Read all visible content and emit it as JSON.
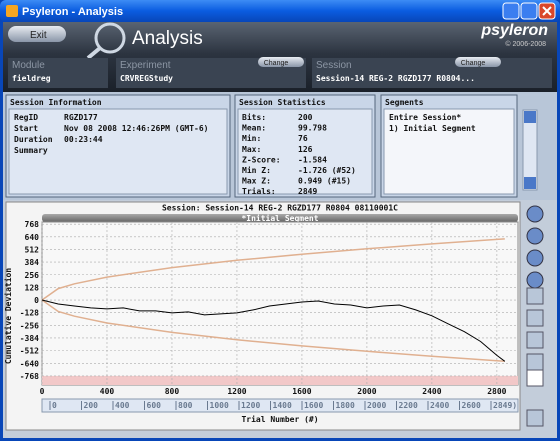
{
  "window": {
    "title": "Psyleron - Analysis"
  },
  "header": {
    "exit": "Exit",
    "title": "Analysis",
    "logo": "psyleron",
    "copyright": "© 2006-2008",
    "module_label": "Module",
    "module": "fieldreg",
    "experiment_label": "Experiment",
    "experiment": "CRVREGStudy",
    "change": "Change",
    "session_label": "Session",
    "session": "Session-14 REG-2 RGZD177 R0804..."
  },
  "session_info": {
    "title": "Session Information",
    "rows": [
      [
        "RegID",
        "RGZD177"
      ],
      [
        "Start",
        "Nov 08 2008 12:46:26PM (GMT-6)"
      ],
      [
        "Duration",
        "00:23:44"
      ],
      [
        "Summary"
      ]
    ]
  },
  "session_stats": {
    "title": "Session Statistics",
    "rows": [
      [
        "Bits:",
        "200"
      ],
      [
        "Mean:",
        "99.798"
      ],
      [
        "Min:",
        "76"
      ],
      [
        "Max:",
        "126"
      ],
      [
        "Z-Score:",
        "-1.584"
      ],
      [
        "Min Z:",
        "-1.726 (#52)"
      ],
      [
        "Max Z:",
        "0.949 (#15)"
      ],
      [
        "Trials:",
        "2849"
      ]
    ]
  },
  "segments": {
    "title": "Segments",
    "items": [
      "Entire Session*",
      "1) Initial Segment"
    ]
  },
  "chart_data": {
    "type": "line",
    "title": "Session: Session-14 REG-2 RGZD177 R0804 08110001C",
    "segment": "*Initial Segment",
    "xlabel": "Trial Number (#)",
    "ylabel": "Cumulative Deviation",
    "xlim": [
      0,
      2930
    ],
    "ylim": [
      -860,
      790
    ],
    "xticks": [
      0,
      400,
      800,
      1200,
      1600,
      2000,
      2400,
      2800
    ],
    "yticks": [
      768,
      640,
      512,
      384,
      256,
      128,
      0,
      -128,
      -256,
      -384,
      -512,
      -640,
      -768
    ],
    "grid": true,
    "series": [
      {
        "color": "#000000",
        "x": [
          0,
          100,
          200,
          300,
          400,
          500,
          600,
          700,
          800,
          900,
          1000,
          1100,
          1200,
          1300,
          1400,
          1500,
          1600,
          1700,
          1800,
          1900,
          2000,
          2100,
          2200,
          2300,
          2400,
          2500,
          2600,
          2700,
          2800,
          2849
        ],
        "values": [
          0,
          -40,
          -60,
          -80,
          -90,
          -80,
          -110,
          -110,
          -130,
          -120,
          -150,
          -140,
          -130,
          -100,
          -60,
          -40,
          -20,
          -10,
          -40,
          -50,
          -80,
          -60,
          -50,
          -100,
          -160,
          -240,
          -320,
          -420,
          -560,
          -620
        ]
      },
      {
        "color": "#e0b090",
        "x": [
          0,
          100,
          200,
          400,
          800,
          1200,
          1600,
          2000,
          2400,
          2800,
          2849
        ],
        "values": [
          0,
          116,
          164,
          232,
          328,
          402,
          464,
          519,
          568,
          614,
          619
        ]
      },
      {
        "color": "#e0b090",
        "x": [
          0,
          100,
          200,
          400,
          800,
          1200,
          1600,
          2000,
          2400,
          2800,
          2849
        ],
        "values": [
          0,
          -116,
          -164,
          -232,
          -328,
          -402,
          -464,
          -519,
          -568,
          -614,
          -619
        ]
      }
    ],
    "range_labels": [
      0,
      200,
      400,
      600,
      800,
      1000,
      1200,
      1400,
      1600,
      1800,
      2000,
      2200,
      2400,
      2600,
      "2849)"
    ]
  }
}
